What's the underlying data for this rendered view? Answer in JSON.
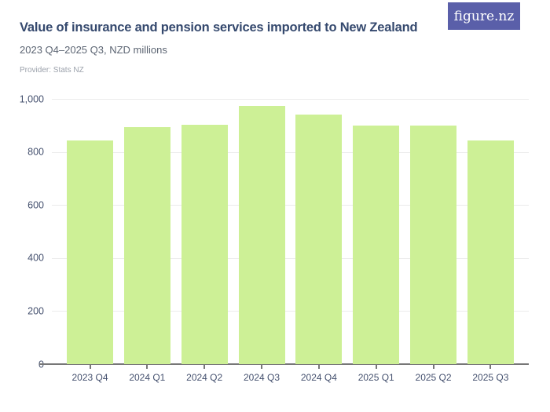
{
  "header": {
    "title": "Value of insurance and pension services imported to New Zealand",
    "subtitle": "2023 Q4–2025 Q3, NZD millions",
    "provider": "Provider: Stats NZ"
  },
  "logo": {
    "text": "figure.nz"
  },
  "chart_data": {
    "type": "bar",
    "title": "Value of insurance and pension services imported to New Zealand",
    "subtitle": "2023 Q4–2025 Q3, NZD millions",
    "source": "Provider: Stats NZ",
    "categories": [
      "2023 Q4",
      "2024 Q1",
      "2024 Q2",
      "2024 Q3",
      "2024 Q4",
      "2025 Q1",
      "2025 Q2",
      "2025 Q3"
    ],
    "values": [
      844,
      893,
      903,
      974,
      942,
      900,
      900,
      843
    ],
    "unit": "NZD millions",
    "xlabel": "",
    "ylabel": "",
    "ylim": [
      0,
      1000
    ],
    "yticks": [
      0,
      200,
      400,
      600,
      800,
      1000
    ],
    "ytick_labels": [
      "0",
      "200",
      "400",
      "600",
      "800",
      "1,000"
    ],
    "grid": true,
    "legend": false,
    "bar_color": "#cdf096"
  },
  "colors": {
    "title": "#35496e",
    "subtitle": "#5b6472",
    "provider": "#9ba1ab",
    "axis_labels": "#44506e",
    "bar": "#cdf096",
    "gridline": "#ebebeb",
    "axis_line": "#777777",
    "logo_bg": "#5a5fa9",
    "logo_text": "#ffffff",
    "background": "#ffffff"
  }
}
